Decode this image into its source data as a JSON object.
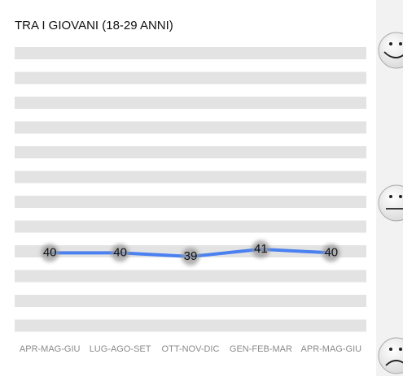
{
  "chart_data": {
    "type": "line",
    "title": "TRA I GIOVANI (18-29 ANNI)",
    "categories": [
      "APR-MAG-GIU",
      "LUG-AGO-SET",
      "OTT-NOV-DIC",
      "GEN-FEB-MAR",
      "APR-MAG-GIU"
    ],
    "series": [
      {
        "name": null,
        "color": "#4a80f0",
        "values": [
          40,
          40,
          39,
          41,
          40
        ]
      }
    ],
    "ylim": [
      16,
      96
    ]
  }
}
